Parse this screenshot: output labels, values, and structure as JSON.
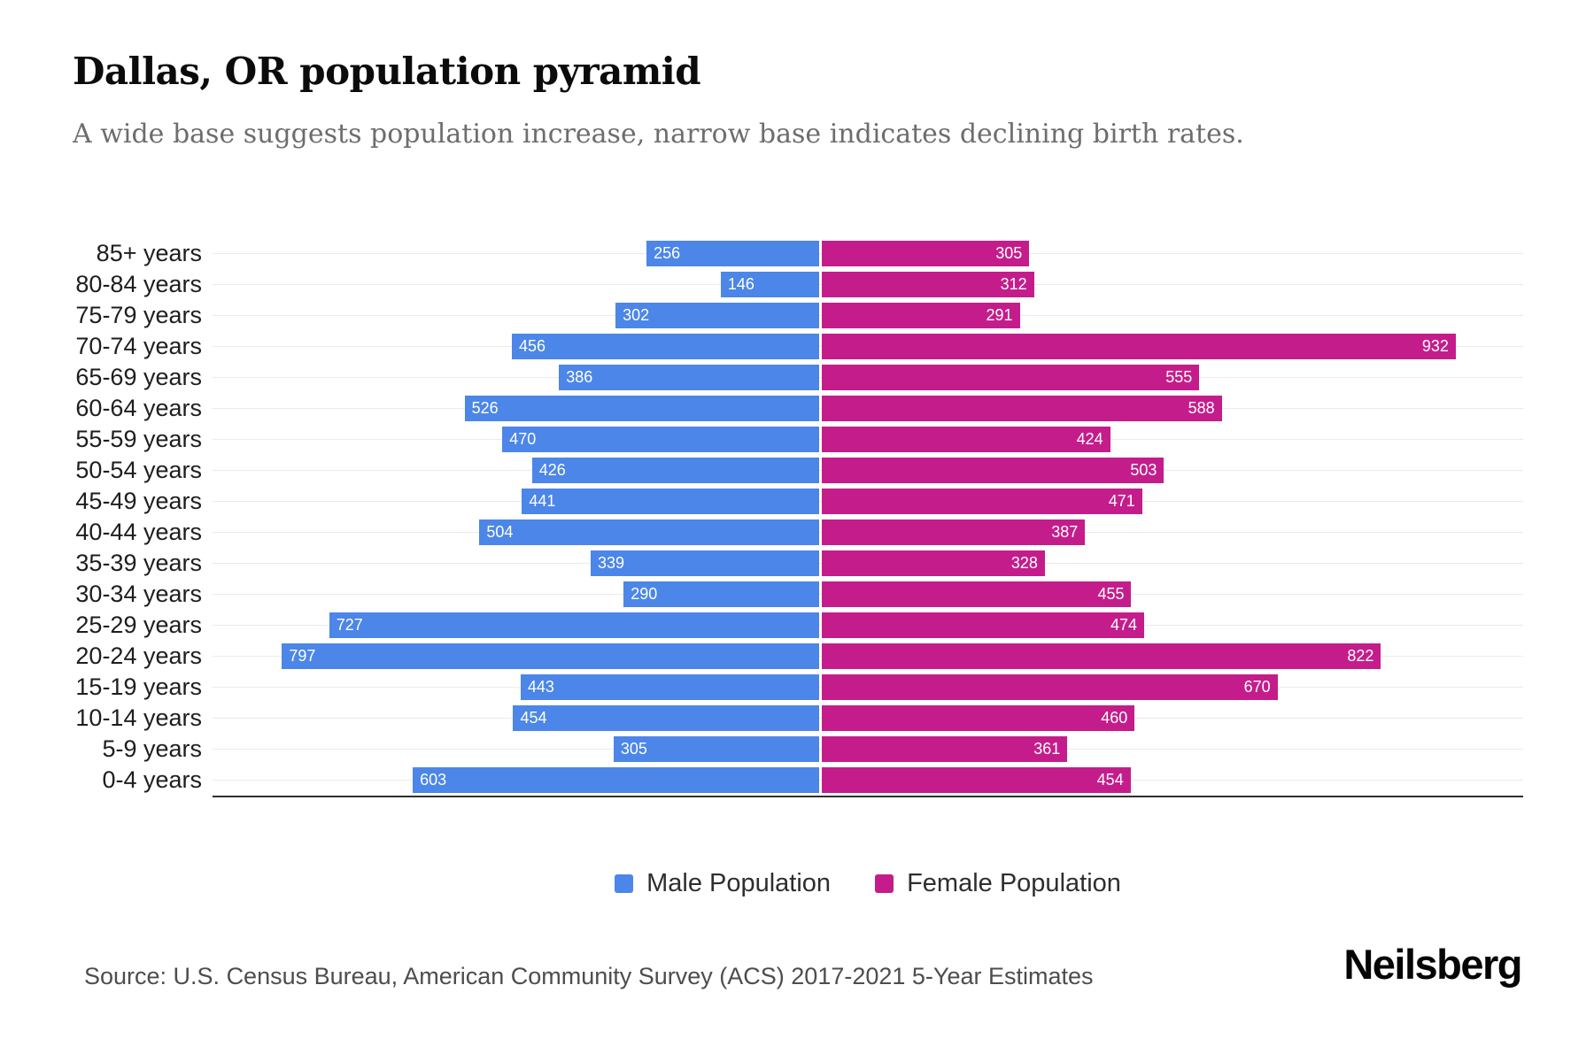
{
  "header": {
    "title": "Dallas, OR population pyramid",
    "subtitle": "A wide base suggests population increase, narrow base indicates declining birth rates."
  },
  "chart_data": {
    "type": "bar",
    "variant": "population-pyramid",
    "title": "Dallas, OR population pyramid",
    "categories": [
      "85+ years",
      "80-84 years",
      "75-79 years",
      "70-74 years",
      "65-69 years",
      "60-64 years",
      "55-59 years",
      "50-54 years",
      "45-49 years",
      "40-44 years",
      "35-39 years",
      "30-34 years",
      "25-29 years",
      "20-24 years",
      "15-19 years",
      "10-14 years",
      "5-9 years",
      "0-4 years"
    ],
    "series": [
      {
        "name": "Male Population",
        "side": "left",
        "color": "#4C86E8",
        "values": [
          256,
          146,
          302,
          456,
          386,
          526,
          470,
          426,
          441,
          504,
          339,
          290,
          727,
          797,
          443,
          454,
          305,
          603
        ]
      },
      {
        "name": "Female Population",
        "side": "right",
        "color": "#C41D8B",
        "values": [
          305,
          312,
          291,
          932,
          555,
          588,
          424,
          503,
          471,
          387,
          328,
          455,
          474,
          822,
          670,
          460,
          361,
          454
        ]
      }
    ],
    "axis": {
      "male_max": 900,
      "female_max": 1035
    },
    "grid": "horizontal-per-category",
    "value_labels": "inside-outer-end",
    "legend_position": "bottom-center",
    "colors": {
      "male": "#4C86E8",
      "female": "#C41D8B",
      "gridline": "#ebebeb",
      "axisline": "#2e2e2e"
    }
  },
  "legend": {
    "items": [
      {
        "label": "Male Population",
        "color": "#4C86E8"
      },
      {
        "label": "Female Population",
        "color": "#C41D8B"
      }
    ]
  },
  "footer": {
    "source": "Source: U.S. Census Bureau, American Community Survey (ACS) 2017-2021 5-Year Estimates",
    "brand": "Neilsberg"
  }
}
